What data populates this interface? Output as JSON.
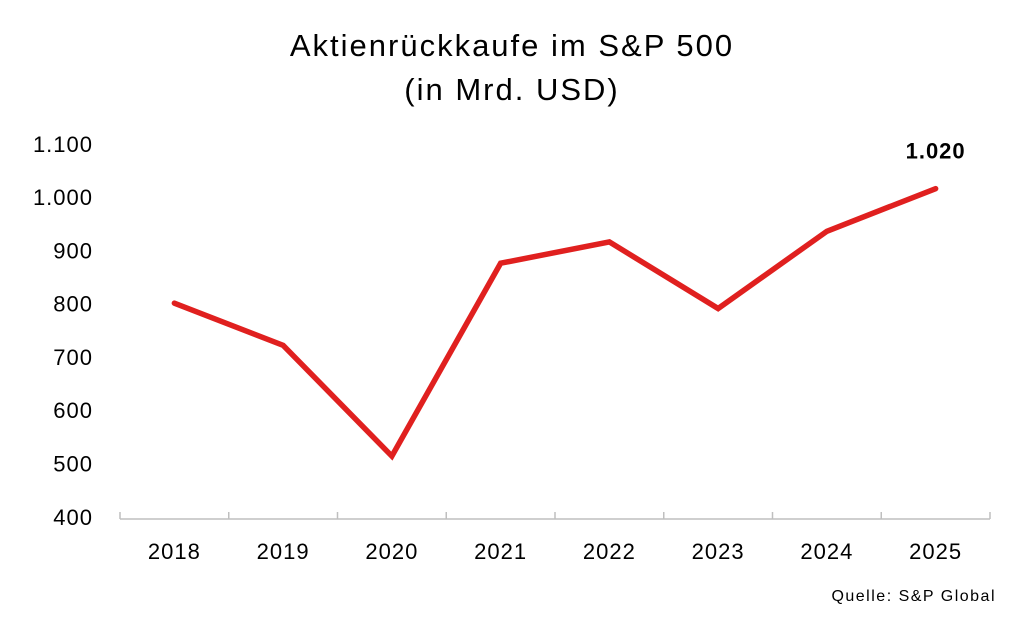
{
  "chart_data": {
    "type": "line",
    "title": "Aktienrückkaufe im S&P 500",
    "subtitle": "(in Mrd. USD)",
    "source": "Quelle: S&P Global",
    "categories": [
      "2018",
      "2019",
      "2020",
      "2021",
      "2022",
      "2023",
      "2024",
      "2025"
    ],
    "series": [
      {
        "name": "Aktienrückkaufe",
        "color": "#e0201f",
        "values": [
          805,
          726,
          518,
          880,
          920,
          795,
          940,
          1020
        ],
        "value_labels": [
          null,
          null,
          null,
          null,
          null,
          null,
          null,
          "1.020"
        ]
      }
    ],
    "ylim": [
      400,
      1100
    ],
    "yticks": [
      400,
      500,
      600,
      700,
      800,
      900,
      {
        "value": 1000,
        "label": "1.000"
      },
      {
        "value": 1100,
        "label": "1.100"
      }
    ],
    "grid": false
  }
}
